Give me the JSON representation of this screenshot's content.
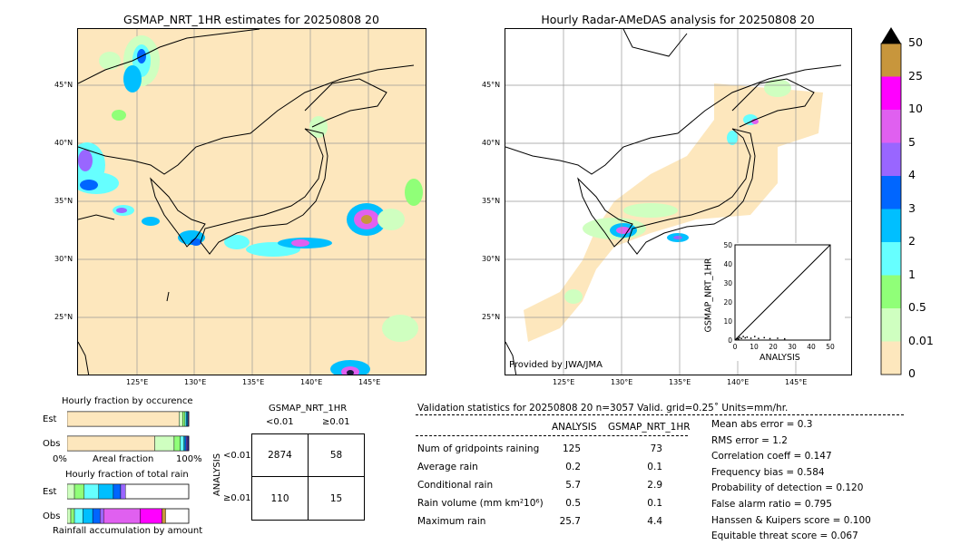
{
  "map_left": {
    "title": "GSMAP_NRT_1HR estimates for 20250808 20",
    "lon_ticks": [
      "125°E",
      "130°E",
      "135°E",
      "140°E",
      "145°E"
    ],
    "lat_ticks": [
      "45°N",
      "40°N",
      "35°N",
      "30°N",
      "25°N"
    ]
  },
  "map_right": {
    "title": "Hourly Radar-AMeDAS analysis for 20250808 20",
    "lon_ticks": [
      "125°E",
      "130°E",
      "135°E",
      "140°E",
      "145°E"
    ],
    "lat_ticks": [
      "45°N",
      "40°N",
      "35°N",
      "30°N",
      "25°N"
    ],
    "credit": "Provided by JWA/JMA"
  },
  "colorbar": {
    "labels": [
      "50",
      "25",
      "10",
      "5",
      "4",
      "3",
      "2",
      "1",
      "0.5",
      "0.01",
      "0"
    ],
    "colors": [
      "#c8963c",
      "#ff00ff",
      "#e060f0",
      "#9966ff",
      "#0066ff",
      "#00bfff",
      "#66ffff",
      "#90ff78",
      "#cfffc0",
      "#fde7bd"
    ]
  },
  "scatter_inset": {
    "xlabel": "ANALYSIS",
    "ylabel": "GSMAP_NRT_1HR",
    "ticks": [
      "0",
      "10",
      "20",
      "30",
      "40",
      "50"
    ],
    "xlim": [
      0,
      50
    ],
    "ylim": [
      0,
      50
    ]
  },
  "occurrence": {
    "title": "Hourly fraction by occurence",
    "row_labels": [
      "Est",
      "Obs"
    ],
    "xlabel": "Areal fraction",
    "x_left": "0%",
    "x_right": "100%"
  },
  "total_rain": {
    "title": "Hourly fraction of total rain",
    "row_labels": [
      "Est",
      "Obs"
    ],
    "xlabel": "Rainfall accumulation by amount"
  },
  "contingency": {
    "col_title": "GSMAP_NRT_1HR",
    "col_labels": [
      "<0.01",
      "≥0.01"
    ],
    "row_title": "ANALYSIS",
    "row_labels": [
      "<0.01",
      "≥0.01"
    ],
    "cells": [
      [
        "2874",
        "58"
      ],
      [
        "110",
        "15"
      ]
    ]
  },
  "validation": {
    "header": "Validation statistics for 20250808 20  n=3057 Valid. grid=0.25˚ Units=mm/hr.",
    "col_analysis": "ANALYSIS",
    "col_gsmap": "GSMAP_NRT_1HR",
    "rows": [
      {
        "label": "Num of gridpoints raining",
        "analysis": "125",
        "gsmap": "73"
      },
      {
        "label": "Average rain",
        "analysis": "0.2",
        "gsmap": "0.1"
      },
      {
        "label": "Conditional rain",
        "analysis": "5.7",
        "gsmap": "2.9"
      },
      {
        "label": "Rain volume (mm km²10⁶)",
        "analysis": "0.5",
        "gsmap": "0.1"
      },
      {
        "label": "Maximum rain",
        "analysis": "25.7",
        "gsmap": "4.4"
      }
    ],
    "scores": [
      "Mean abs error =    0.3",
      "RMS error =    1.2",
      "Correlation coeff =  0.147",
      "Frequency bias =  0.584",
      "Probability of detection =  0.120",
      "False alarm ratio =  0.795",
      "Hanssen & Kuipers score =  0.100",
      "Equitable threat score =  0.067"
    ]
  },
  "chart_data": [
    {
      "type": "bar",
      "title": "Hourly fraction by occurence",
      "categories": [
        "Est",
        "Obs"
      ],
      "xlabel": "Areal fraction",
      "series": [
        {
          "color": "#fde7bd",
          "values": [
            0.92,
            0.72
          ]
        },
        {
          "color": "#cfffc0",
          "values": [
            0.03,
            0.16
          ]
        },
        {
          "color": "#90ff78",
          "values": [
            0.02,
            0.05
          ]
        },
        {
          "color": "#66ffff",
          "values": [
            0.01,
            0.03
          ]
        },
        {
          "color": "#00bfff",
          "values": [
            0.01,
            0.01
          ]
        },
        {
          "color": "#0066ff",
          "values": [
            0.005,
            0.01
          ]
        },
        {
          "color": "#9966ff",
          "values": [
            0.005,
            0.01
          ]
        },
        {
          "color": "#1a1a80",
          "values": [
            0.0,
            0.01
          ]
        }
      ]
    },
    {
      "type": "bar",
      "title": "Hourly fraction of total rain",
      "categories": [
        "Est",
        "Obs"
      ],
      "xlabel": "Rainfall accumulation by amount",
      "series": [
        {
          "color": "#cfffc0",
          "values": [
            0.06,
            0.03
          ]
        },
        {
          "color": "#90ff78",
          "values": [
            0.08,
            0.03
          ]
        },
        {
          "color": "#66ffff",
          "values": [
            0.12,
            0.07
          ]
        },
        {
          "color": "#00bfff",
          "values": [
            0.12,
            0.08
          ]
        },
        {
          "color": "#0066ff",
          "values": [
            0.06,
            0.06
          ]
        },
        {
          "color": "#9966ff",
          "values": [
            0.04,
            0.03
          ]
        },
        {
          "color": "#e060f0",
          "values": [
            0.0,
            0.3
          ]
        },
        {
          "color": "#ff00ff",
          "values": [
            0.0,
            0.18
          ]
        },
        {
          "color": "#c8963c",
          "values": [
            0.0,
            0.03
          ]
        }
      ]
    },
    {
      "type": "scatter",
      "xlabel": "ANALYSIS",
      "ylabel": "GSMAP_NRT_1HR",
      "xlim": [
        0,
        50
      ],
      "ylim": [
        0,
        50
      ],
      "points": [
        [
          0.5,
          0.3
        ],
        [
          1,
          0.5
        ],
        [
          1.5,
          0.2
        ],
        [
          2,
          1
        ],
        [
          3,
          0.5
        ],
        [
          4,
          1.5
        ],
        [
          5,
          0.8
        ],
        [
          6,
          1.2
        ],
        [
          8,
          0.6
        ],
        [
          10,
          1.5
        ],
        [
          12,
          0.5
        ],
        [
          15,
          0.9
        ],
        [
          18,
          0.4
        ],
        [
          22,
          0.6
        ],
        [
          25.7,
          0.3
        ]
      ]
    }
  ]
}
